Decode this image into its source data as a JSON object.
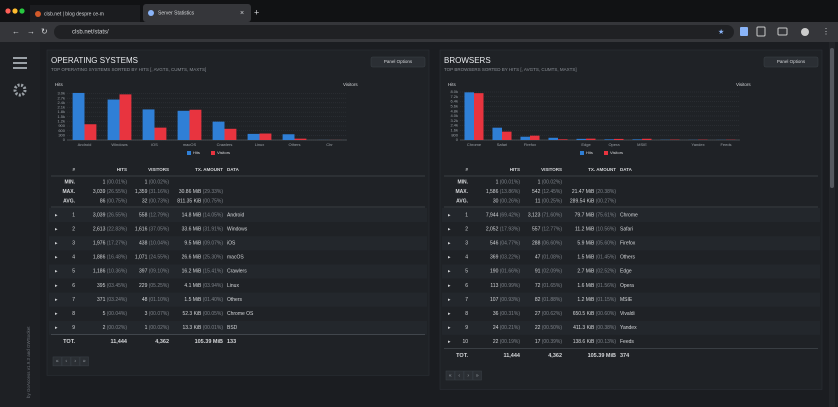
{
  "browser": {
    "tabs": [
      "clsb.net | blog despre ce-m",
      "Server Statistics"
    ],
    "url": "clsb.net/stats/"
  },
  "sidebar": {
    "footer": "by GoAccess v1.9.3 and GWSocket"
  },
  "panels": [
    {
      "title": "OPERATING SYSTEMS",
      "subtitle": "TOP OPERATING SYSTEMS SORTED BY HITS [, AVGTS, CUMTS, MAXTS]",
      "options": "Panel Options",
      "chart": {
        "type": "bar",
        "y_label": "Hits",
        "y2_label": "Visitors",
        "categories": [
          "Android",
          "Windows",
          "iOS",
          "macOS",
          "Crawlers",
          "Linux",
          "Others",
          "Chr"
        ],
        "series": [
          {
            "name": "Hits",
            "color": "#2f7fd6",
            "values": [
              3039,
              2613,
              1976,
              1886,
              1186,
              395,
              371,
              5
            ]
          },
          {
            "name": "Visitors",
            "color": "#e8343f",
            "axis": "y2",
            "values": [
              558,
              1616,
              438,
              1071,
              397,
              229,
              48,
              3
            ]
          }
        ],
        "ylim": [
          0,
          3100
        ],
        "yticks": [
          0,
          300,
          600,
          900,
          {
            "value": 1200,
            "label": "1.2k"
          },
          {
            "value": 1500,
            "label": "1.5k"
          },
          {
            "value": 1800,
            "label": "1.8k"
          },
          {
            "value": 2100,
            "label": "2.1k"
          },
          {
            "value": 2400,
            "label": "2.4k"
          },
          {
            "value": 2700,
            "label": "2.7k"
          },
          {
            "value": 3000,
            "label": "3.0k"
          }
        ],
        "y2lim": [
          0,
          1700
        ]
      },
      "table": {
        "columns": [
          "#",
          "HITS",
          "VISITORS",
          "TX. AMOUNT",
          "DATA"
        ],
        "summary": [
          {
            "label": "MIN.",
            "hits": [
              "1",
              "(00.01%)"
            ],
            "visitors": [
              "1",
              "(00.02%)"
            ]
          },
          {
            "label": "MAX.",
            "hits": [
              "3,039",
              "(26.55%)"
            ],
            "visitors": [
              "1,359",
              "(31.16%)"
            ],
            "tx": [
              "30.86 MiB",
              "(29.33%)"
            ]
          },
          {
            "label": "AVG.",
            "hits": [
              "86",
              "(00.75%)"
            ],
            "visitors": [
              "32",
              "(00.73%)"
            ],
            "tx": [
              "811.35 KiB",
              "(00.75%)"
            ]
          }
        ],
        "rows": [
          {
            "n": "1",
            "hits": [
              "3,039",
              "(26.55%)"
            ],
            "visitors": [
              "558",
              "(12.79%)"
            ],
            "tx": [
              "14.8 MiB",
              "(14.05%)"
            ],
            "data": "Android"
          },
          {
            "n": "2",
            "hits": [
              "2,613",
              "(22.83%)"
            ],
            "visitors": [
              "1,616",
              "(37.05%)"
            ],
            "tx": [
              "33.6 MiB",
              "(31.91%)"
            ],
            "data": "Windows"
          },
          {
            "n": "3",
            "hits": [
              "1,976",
              "(17.27%)"
            ],
            "visitors": [
              "438",
              "(10.04%)"
            ],
            "tx": [
              "9.5 MiB",
              "(09.07%)"
            ],
            "data": "iOS"
          },
          {
            "n": "4",
            "hits": [
              "1,886",
              "(16.48%)"
            ],
            "visitors": [
              "1,071",
              "(24.55%)"
            ],
            "tx": [
              "26.6 MiB",
              "(25.30%)"
            ],
            "data": "macOS"
          },
          {
            "n": "5",
            "hits": [
              "1,186",
              "(10.36%)"
            ],
            "visitors": [
              "397",
              "(09.10%)"
            ],
            "tx": [
              "16.2 MiB",
              "(15.41%)"
            ],
            "data": "Crawlers"
          },
          {
            "n": "6",
            "hits": [
              "395",
              "(03.45%)"
            ],
            "visitors": [
              "229",
              "(05.25%)"
            ],
            "tx": [
              "4.1 MiB",
              "(03.94%)"
            ],
            "data": "Linux"
          },
          {
            "n": "7",
            "hits": [
              "371",
              "(03.24%)"
            ],
            "visitors": [
              "48",
              "(01.10%)"
            ],
            "tx": [
              "1.5 MiB",
              "(01.40%)"
            ],
            "data": "Others"
          },
          {
            "n": "8",
            "hits": [
              "5",
              "(00.04%)"
            ],
            "visitors": [
              "3",
              "(00.07%)"
            ],
            "tx": [
              "52.3 KiB",
              "(00.05%)"
            ],
            "data": "Chrome OS"
          },
          {
            "n": "9",
            "hits": [
              "2",
              "(00.02%)"
            ],
            "visitors": [
              "1",
              "(00.02%)"
            ],
            "tx": [
              "13.3 KiB",
              "(00.01%)"
            ],
            "data": "BSD"
          }
        ],
        "total": {
          "label": "TOT.",
          "hits": "11,444",
          "visitors": "4,362",
          "tx": "105.39 MiB",
          "data": "133"
        }
      },
      "pagination": [
        "«",
        "‹",
        "›",
        "»"
      ]
    },
    {
      "title": "BROWSERS",
      "subtitle": "TOP BROWSERS SORTED BY HITS [, AVGTS, CUMTS, MAXTS]",
      "options": "Panel Options",
      "chart": {
        "type": "bar",
        "y_label": "Hits",
        "y2_label": "Visitors",
        "categories": [
          "Chrome",
          "Safari",
          "Firefox",
          null,
          "Edge",
          "Opera",
          "MSIE",
          null,
          "Yandex",
          "Feeds"
        ],
        "series": [
          {
            "name": "Hits",
            "color": "#2f7fd6",
            "values": [
              7944,
              2052,
              546,
              369,
              190,
              113,
              107,
              36,
              24,
              22
            ]
          },
          {
            "name": "Visitors",
            "color": "#e8343f",
            "axis": "y2",
            "values": [
              3123,
              557,
              288,
              47,
              91,
              72,
              82,
              27,
              22,
              17
            ]
          }
        ],
        "ylim": [
          0,
          8000
        ],
        "yticks": [
          0,
          800,
          {
            "value": 1600,
            "label": "1.6k"
          },
          {
            "value": 2400,
            "label": "2.4k"
          },
          {
            "value": 3200,
            "label": "3.2k"
          },
          {
            "value": 4000,
            "label": "4.0k"
          },
          {
            "value": 4800,
            "label": "4.8k"
          },
          {
            "value": 5600,
            "label": "5.6k"
          },
          {
            "value": 6400,
            "label": "6.4k"
          },
          {
            "value": 7200,
            "label": "7.2k"
          },
          {
            "value": 8000,
            "label": "8.0k"
          }
        ],
        "y2lim": [
          0,
          3200
        ]
      },
      "table": {
        "columns": [
          "#",
          "HITS",
          "VISITORS",
          "TX. AMOUNT",
          "DATA"
        ],
        "summary": [
          {
            "label": "MIN.",
            "hits": [
              "1",
              "(00.01%)"
            ],
            "visitors": [
              "1",
              "(00.02%)"
            ]
          },
          {
            "label": "MAX.",
            "hits": [
              "1,586",
              "(13.86%)"
            ],
            "visitors": [
              "542",
              "(12.45%)"
            ],
            "tx": [
              "21.47 MiB",
              "(20.38%)"
            ]
          },
          {
            "label": "AVG.",
            "hits": [
              "30",
              "(00.26%)"
            ],
            "visitors": [
              "11",
              "(00.25%)"
            ],
            "tx": [
              "289.54 KiB",
              "(00.27%)"
            ]
          }
        ],
        "rows": [
          {
            "n": "1",
            "hits": [
              "7,944",
              "(69.42%)"
            ],
            "visitors": [
              "3,123",
              "(71.60%)"
            ],
            "tx": [
              "79.7 MiB",
              "(75.61%)"
            ],
            "data": "Chrome"
          },
          {
            "n": "2",
            "hits": [
              "2,052",
              "(17.93%)"
            ],
            "visitors": [
              "557",
              "(12.77%)"
            ],
            "tx": [
              "11.2 MiB",
              "(10.56%)"
            ],
            "data": "Safari"
          },
          {
            "n": "3",
            "hits": [
              "546",
              "(04.77%)"
            ],
            "visitors": [
              "288",
              "(06.60%)"
            ],
            "tx": [
              "5.9 MiB",
              "(05.60%)"
            ],
            "data": "Firefox"
          },
          {
            "n": "4",
            "hits": [
              "369",
              "(03.22%)"
            ],
            "visitors": [
              "47",
              "(01.08%)"
            ],
            "tx": [
              "1.5 MiB",
              "(01.45%)"
            ],
            "data": "Others"
          },
          {
            "n": "5",
            "hits": [
              "190",
              "(01.66%)"
            ],
            "visitors": [
              "91",
              "(02.09%)"
            ],
            "tx": [
              "2.7 MiB",
              "(02.52%)"
            ],
            "data": "Edge"
          },
          {
            "n": "6",
            "hits": [
              "113",
              "(00.99%)"
            ],
            "visitors": [
              "72",
              "(01.65%)"
            ],
            "tx": [
              "1.6 MiB",
              "(01.56%)"
            ],
            "data": "Opera"
          },
          {
            "n": "7",
            "hits": [
              "107",
              "(00.93%)"
            ],
            "visitors": [
              "82",
              "(01.88%)"
            ],
            "tx": [
              "1.2 MiB",
              "(01.15%)"
            ],
            "data": "MSIE"
          },
          {
            "n": "8",
            "hits": [
              "36",
              "(00.31%)"
            ],
            "visitors": [
              "27",
              "(00.62%)"
            ],
            "tx": [
              "650.5 KiB",
              "(00.60%)"
            ],
            "data": "Vivaldi"
          },
          {
            "n": "9",
            "hits": [
              "24",
              "(00.21%)"
            ],
            "visitors": [
              "22",
              "(00.50%)"
            ],
            "tx": [
              "411.3 KiB",
              "(00.38%)"
            ],
            "data": "Yandex"
          },
          {
            "n": "10",
            "hits": [
              "22",
              "(00.19%)"
            ],
            "visitors": [
              "17",
              "(00.39%)"
            ],
            "tx": [
              "138.6 KiB",
              "(00.13%)"
            ],
            "data": "Feeds"
          }
        ],
        "total": {
          "label": "TOT.",
          "hits": "11,444",
          "visitors": "4,362",
          "tx": "105.39 MiB",
          "data": "374"
        }
      },
      "pagination": [
        "«",
        "‹",
        "›",
        "»"
      ]
    }
  ]
}
